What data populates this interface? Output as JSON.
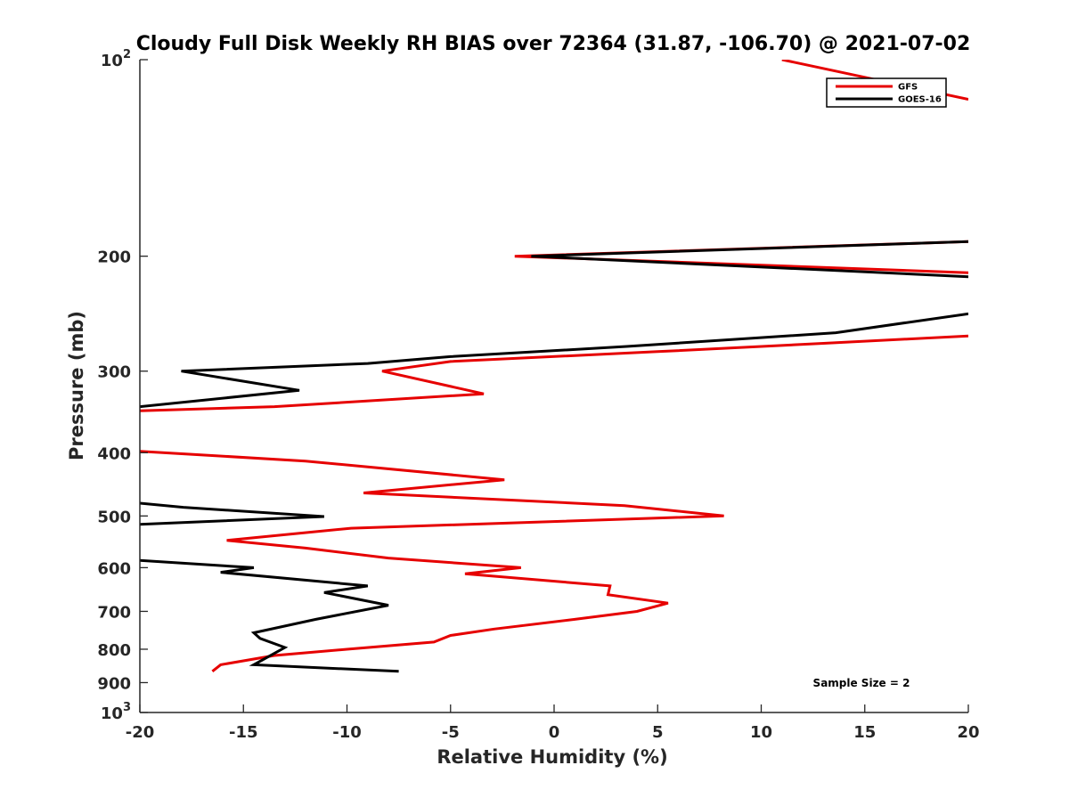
{
  "chart_data": {
    "type": "line",
    "title": "Cloudy Full Disk Weekly RH BIAS over 72364 (31.87, -106.70) @ 2021-07-02",
    "xlabel": "Relative Humidity (%)",
    "ylabel": "Pressure (mb)",
    "xlim": [
      -20,
      20
    ],
    "ylim": [
      1000,
      100
    ],
    "y_scale": "log",
    "y_reversed": true,
    "grid": false,
    "legend_position": "top-right",
    "x_ticks": [
      -20,
      -15,
      -10,
      -5,
      0,
      5,
      10,
      15,
      20
    ],
    "x_tick_labels": [
      "-20",
      "-15",
      "-10",
      "-5",
      "0",
      "5",
      "10",
      "15",
      "20"
    ],
    "y_ticks": [
      100,
      200,
      300,
      400,
      500,
      600,
      700,
      800,
      900,
      1000
    ],
    "y_tick_labels": [
      {
        "base": "10",
        "exp": "2"
      },
      {
        "base": "200",
        "exp": ""
      },
      {
        "base": "300",
        "exp": ""
      },
      {
        "base": "400",
        "exp": ""
      },
      {
        "base": "500",
        "exp": ""
      },
      {
        "base": "600",
        "exp": ""
      },
      {
        "base": "700",
        "exp": ""
      },
      {
        "base": "800",
        "exp": ""
      },
      {
        "base": "900",
        "exp": ""
      },
      {
        "base": "10",
        "exp": "3"
      }
    ],
    "annotation": "Sample Size = 2",
    "series": [
      {
        "name": "GFS",
        "color": "#e60000",
        "segments": [
          [
            [
              11,
              100
            ],
            [
              20,
              115
            ]
          ],
          [
            [
              20,
              190
            ],
            [
              -1.9,
              200
            ],
            [
              20,
              212
            ]
          ],
          [
            [
              20,
              265
            ],
            [
              13,
              272
            ],
            [
              5,
              280
            ],
            [
              -5,
              290
            ],
            [
              -8.3,
              300
            ],
            [
              -3.4,
              325
            ],
            [
              -13.5,
              340
            ],
            [
              -20,
              345
            ]
          ],
          [
            [
              -20,
              398
            ],
            [
              -12,
              412
            ],
            [
              -2.4,
              440
            ],
            [
              -9.2,
              461
            ],
            [
              3.4,
              482
            ],
            [
              8.2,
              500
            ],
            [
              -9.8,
              522
            ],
            [
              -15.8,
              545
            ],
            [
              -12,
              560
            ],
            [
              -8,
              580
            ],
            [
              -1.6,
              600
            ],
            [
              -4.3,
              613
            ],
            [
              2.7,
              640
            ],
            [
              2.6,
              660
            ],
            [
              5.5,
              680
            ],
            [
              4,
              700
            ],
            [
              1,
              720
            ],
            [
              -2.9,
              745
            ],
            [
              -5,
              762
            ],
            [
              -5.8,
              780
            ],
            [
              -10,
              800
            ],
            [
              -13.5,
              818
            ],
            [
              -16.1,
              845
            ],
            [
              -16.5,
              865
            ]
          ]
        ]
      },
      {
        "name": "GOES-16",
        "color": "#000000",
        "segments": [
          [
            [
              20,
              190
            ],
            [
              -1.1,
              200
            ],
            [
              20,
              215
            ]
          ],
          [
            [
              20,
              245
            ],
            [
              13.6,
              262
            ],
            [
              3.5,
              275
            ],
            [
              -5,
              285
            ],
            [
              -9,
              292
            ],
            [
              -18,
              300
            ],
            [
              -12.3,
              321
            ],
            [
              -20,
              340
            ]
          ],
          [
            [
              -20,
              478
            ],
            [
              -17.9,
              485
            ],
            [
              -11.1,
              501
            ],
            [
              -20,
              515
            ]
          ],
          [
            [
              -20,
              585
            ],
            [
              -14.5,
              600
            ],
            [
              -16.1,
              610
            ],
            [
              -9,
              640
            ],
            [
              -11.1,
              655
            ],
            [
              -8,
              685
            ],
            [
              -11.5,
              720
            ],
            [
              -14.5,
              755
            ],
            [
              -14.2,
              770
            ],
            [
              -13,
              795
            ],
            [
              -14.5,
              845
            ],
            [
              -7.5,
              865
            ]
          ]
        ]
      }
    ]
  }
}
